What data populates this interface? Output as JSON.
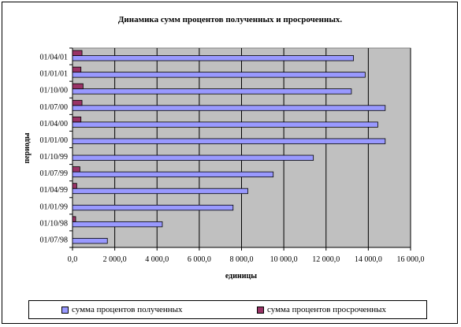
{
  "chart_data": {
    "type": "bar",
    "orientation": "horizontal",
    "title": "Динамика сумм процентов полученных и просроченных.",
    "xlabel": "единицы",
    "ylabel": "периоды",
    "xlim": [
      0,
      16000
    ],
    "xticks": [
      0,
      2000,
      4000,
      6000,
      8000,
      10000,
      12000,
      14000,
      16000
    ],
    "xtick_labels": [
      "0,0",
      "2 000,0",
      "4 000,0",
      "6 000,0",
      "8 000,0",
      "10 000,0",
      "12 000,0",
      "14 000,0",
      "16 000,0"
    ],
    "categories": [
      "01/07/98",
      "01/10/98",
      "01/01/99",
      "01/04/99",
      "01/07/99",
      "01/10/99",
      "01/01/00",
      "01/04/00",
      "01/07/00",
      "01/10/00",
      "01/01/01",
      "01/04/01"
    ],
    "series": [
      {
        "name": "сумма процентов полученных",
        "color": "#9999ff",
        "values": [
          1650,
          4250,
          7600,
          8300,
          9500,
          11400,
          14800,
          14450,
          14800,
          13200,
          13850,
          13300
        ]
      },
      {
        "name": "сумма процентов просроченных",
        "color": "#993366",
        "values": [
          0,
          150,
          0,
          200,
          350,
          0,
          0,
          400,
          450,
          500,
          400,
          450
        ]
      }
    ],
    "grid": "vertical",
    "plot_background": "#c0c0c0",
    "legend_position": "bottom"
  }
}
